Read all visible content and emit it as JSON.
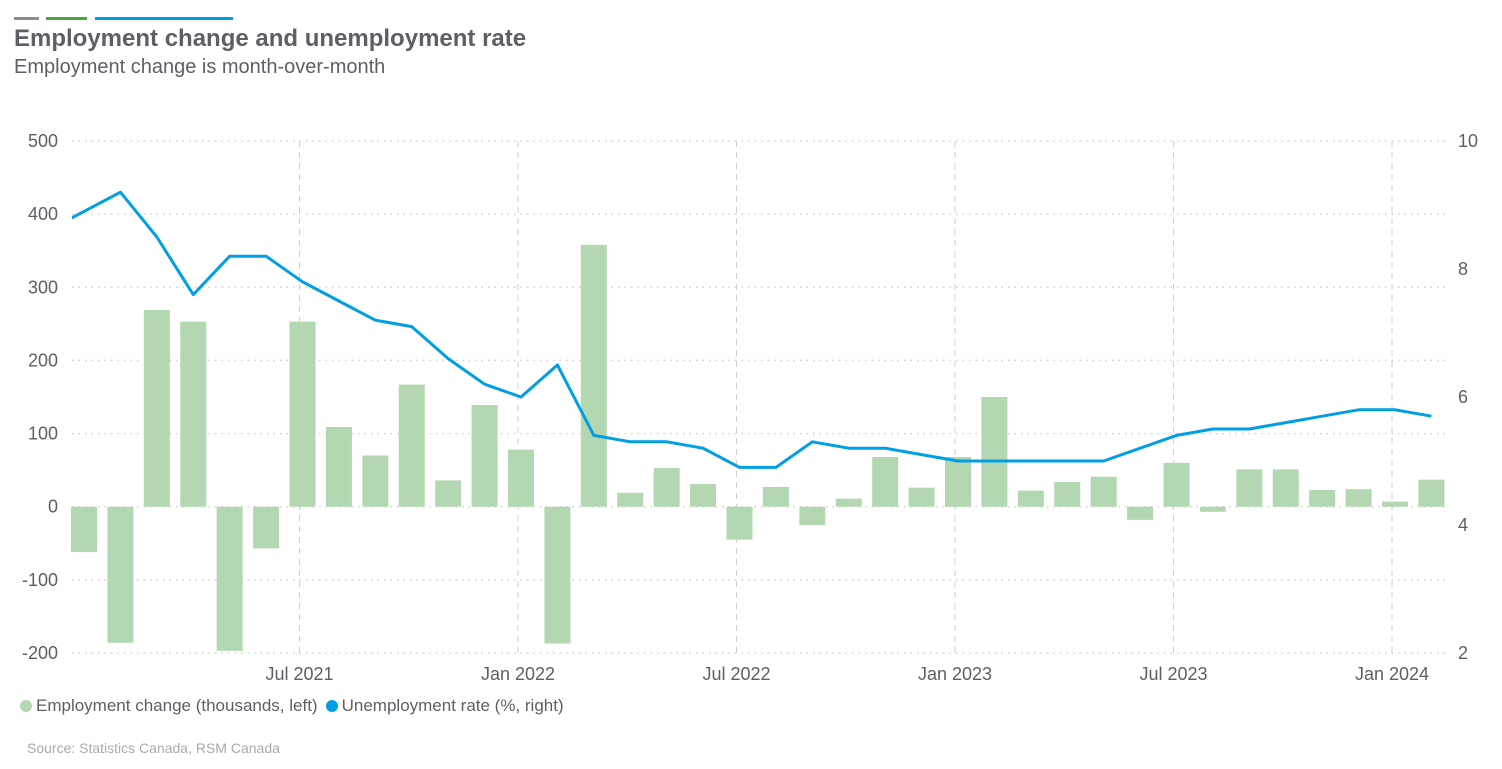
{
  "header": {
    "title": "Employment change and unemployment rate",
    "subtitle": "Employment change is month-over-month"
  },
  "colors": {
    "bar": "#b3d7b0",
    "line": "#009fe3",
    "text": "#5e5e66",
    "accent_gray": "#8c8c8c",
    "accent_green": "#4ea53c",
    "accent_blue": "#009fe3"
  },
  "chart_data": {
    "type": "bar+line",
    "title": "Employment change and unemployment rate",
    "subtitle": "Employment change is month-over-month",
    "x_start": "2021-01",
    "x_end": "2024-02",
    "frequency": "monthly",
    "x_tick_labels": [
      "Jul 2021",
      "Jan 2022",
      "Jul 2022",
      "Jan 2023",
      "Jul 2023",
      "Jan 2024"
    ],
    "x_tick_months": [
      6,
      12,
      18,
      24,
      30,
      36
    ],
    "y_left": {
      "range": [
        -200,
        500
      ],
      "ticks": [
        -200,
        -100,
        0,
        100,
        200,
        300,
        400,
        500
      ]
    },
    "y_right": {
      "range": [
        2,
        10
      ],
      "ticks": [
        2,
        4,
        6,
        8,
        10
      ]
    },
    "grid": true,
    "legend_placement": "bottom-left",
    "series": [
      {
        "name": "Employment change (thousands, left)",
        "type": "bar",
        "axis": "left",
        "values": [
          -62,
          -186,
          269,
          253,
          -197,
          -57,
          253,
          109,
          70,
          167,
          36,
          139,
          78,
          -187,
          358,
          19,
          53,
          31,
          -45,
          27,
          -25,
          11,
          68,
          26,
          68,
          150,
          22,
          34,
          41,
          -18,
          60,
          -7,
          51,
          51,
          23,
          24,
          7,
          37
        ]
      },
      {
        "name": "Unemployment rate (%, right)",
        "type": "line",
        "axis": "right",
        "values": [
          8.9,
          9.2,
          8.5,
          7.6,
          8.2,
          8.2,
          7.8,
          7.5,
          7.2,
          7.1,
          6.6,
          6.2,
          6.0,
          6.5,
          5.4,
          5.3,
          5.3,
          5.2,
          4.9,
          4.9,
          5.3,
          5.2,
          5.2,
          5.1,
          5.0,
          5.0,
          5.0,
          5.0,
          5.0,
          5.2,
          5.4,
          5.5,
          5.5,
          5.6,
          5.7,
          5.8,
          5.8,
          5.7
        ]
      }
    ]
  },
  "source": "Source: Statistics Canada, RSM Canada"
}
